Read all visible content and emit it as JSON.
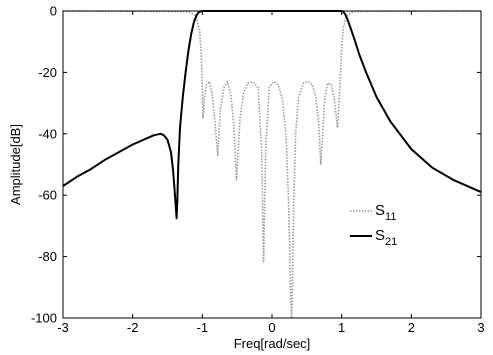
{
  "chart_data": {
    "type": "line",
    "title": "",
    "xlabel": "Freq[rad/sec]",
    "ylabel": "Amplitude[dB]",
    "xlim": [
      -3,
      3
    ],
    "ylim": [
      -100,
      0
    ],
    "xticks": [
      -3,
      -2,
      -1,
      0,
      1,
      2,
      3
    ],
    "yticks": [
      0,
      -20,
      -40,
      -60,
      -80,
      -100
    ],
    "grid": false,
    "legend_position": "right-middle",
    "series": [
      {
        "name": "S11",
        "legend_main": "S",
        "legend_sub": "11",
        "style": "dotted",
        "color": "#9a9a9a",
        "x": [
          -3,
          -1.2,
          -1.1,
          -1.04,
          -1.01,
          -0.99,
          -0.97,
          -0.94,
          -0.9,
          -0.86,
          -0.82,
          -0.78,
          -0.74,
          -0.69,
          -0.64,
          -0.59,
          -0.55,
          -0.51,
          -0.46,
          -0.41,
          -0.35,
          -0.28,
          -0.2,
          -0.15,
          -0.12,
          -0.09,
          -0.04,
          0.02,
          0.09,
          0.15,
          0.2,
          0.24,
          0.27,
          0.28,
          0.29,
          0.31,
          0.34,
          0.38,
          0.45,
          0.52,
          0.58,
          0.63,
          0.67,
          0.7,
          0.73,
          0.76,
          0.8,
          0.85,
          0.89,
          0.92,
          0.94,
          0.96,
          0.985,
          1.0,
          1.02,
          1.05,
          1.08,
          1.13,
          1.2,
          1.3,
          3
        ],
        "y": [
          0,
          -0.2,
          -1.5,
          -6,
          -16,
          -35,
          -28,
          -24,
          -23,
          -27,
          -36,
          -47,
          -32,
          -25,
          -23,
          -27,
          -37,
          -55,
          -35,
          -27,
          -23.5,
          -23,
          -25,
          -45,
          -82,
          -45,
          -25,
          -23,
          -24,
          -29,
          -40,
          -63,
          -95,
          -100,
          -95,
          -63,
          -40,
          -28,
          -23.5,
          -23,
          -24,
          -28,
          -37,
          -50,
          -38,
          -28,
          -23.5,
          -24,
          -28,
          -34,
          -38,
          -30,
          -20,
          -12,
          -6,
          -3,
          -1.5,
          -0.6,
          -0.2,
          -0.1,
          0
        ]
      },
      {
        "name": "S21",
        "legend_main": "S",
        "legend_sub": "21",
        "style": "solid",
        "color": "#000000",
        "x": [
          -3,
          -2.8,
          -2.6,
          -2.4,
          -2.2,
          -2.0,
          -1.8,
          -1.7,
          -1.6,
          -1.55,
          -1.5,
          -1.45,
          -1.42,
          -1.39,
          -1.37,
          -1.36,
          -1.345,
          -1.32,
          -1.28,
          -1.24,
          -1.2,
          -1.16,
          -1.12,
          -1.08,
          -1.05,
          -1.02,
          -1.0,
          -0.95,
          0.95,
          1.0,
          1.02,
          1.05,
          1.08,
          1.12,
          1.18,
          1.25,
          1.35,
          1.5,
          1.7,
          2.0,
          2.3,
          2.6,
          3.0
        ],
        "y": [
          -57,
          -54,
          -51.5,
          -48.5,
          -46,
          -43.5,
          -41.5,
          -40.5,
          -40,
          -40.5,
          -42,
          -46,
          -52,
          -61,
          -67.5,
          -62,
          -50,
          -38,
          -28,
          -20,
          -13,
          -7.5,
          -3.5,
          -1.2,
          -0.4,
          -0.1,
          0,
          0,
          0,
          0,
          -0.2,
          -1,
          -2.5,
          -5,
          -9,
          -14,
          -20,
          -28,
          -36,
          -45,
          -51,
          -55,
          -59
        ]
      }
    ]
  }
}
